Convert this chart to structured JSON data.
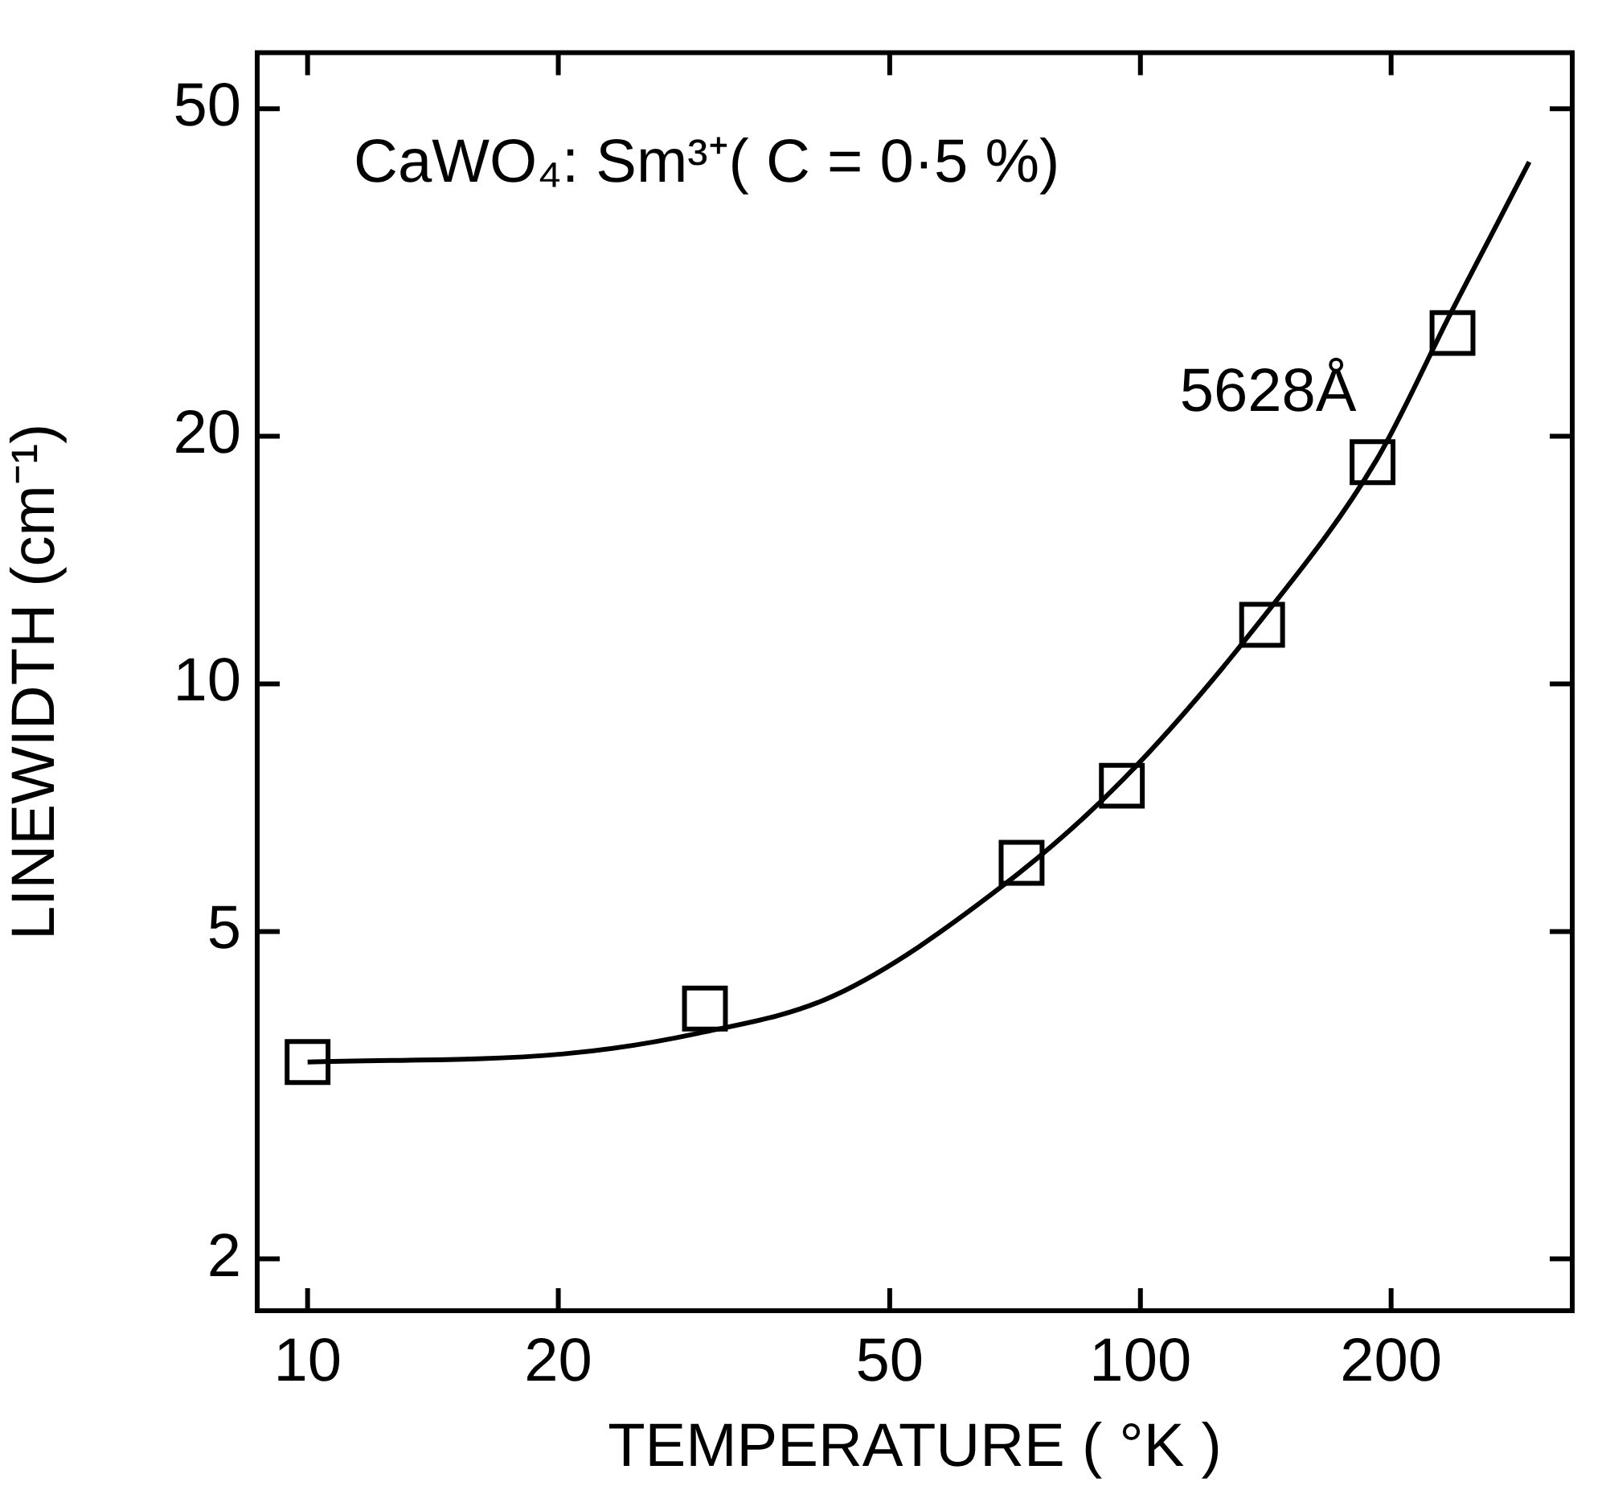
{
  "chart_data": {
    "type": "scatter",
    "xlabel": "TEMPERATURE ( °K )",
    "ylabel": "LINEWIDTH (cm⁻¹)",
    "annotations": [
      "CaWO₄: Sm³⁺( C = 0·5 %)"
    ],
    "log": "xy",
    "xlim": [
      8.7,
      330
    ],
    "xticks": [
      10,
      20,
      50,
      100,
      200
    ],
    "ylim": [
      1.73,
      58.5
    ],
    "yticks": [
      2,
      5,
      10,
      20,
      50
    ],
    "grid": false,
    "legend": false,
    "series": [
      {
        "name": "5628Å",
        "marker": "square",
        "color": "#000000",
        "x": [
          10,
          30,
          72,
          95,
          140,
          190,
          237
        ],
        "values": [
          3.47,
          4.03,
          6.06,
          7.52,
          11.8,
          18.6,
          26.7
        ]
      },
      {
        "type": "line",
        "marker": "none",
        "color": "#000000",
        "x": [
          10,
          20.3,
          29.4,
          42.9,
          68.6,
          95.3,
          140,
          192,
          237,
          263,
          293
        ],
        "values": [
          3.47,
          3.55,
          3.76,
          4.18,
          5.7,
          7.65,
          12,
          18.7,
          28.5,
          34.9,
          43.1
        ]
      }
    ]
  }
}
